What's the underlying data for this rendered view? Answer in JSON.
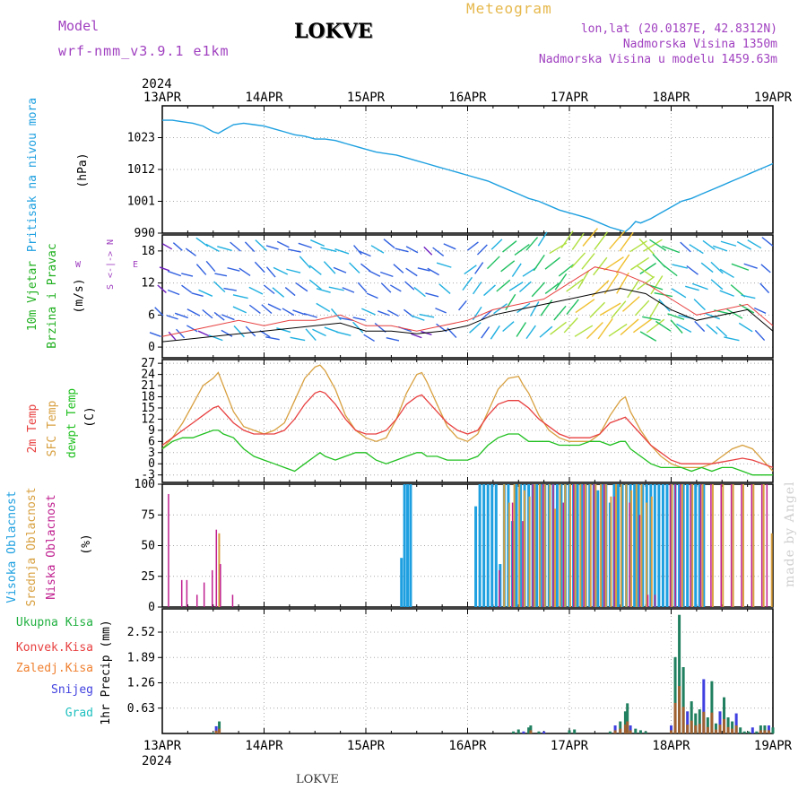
{
  "header": {
    "model_label": "Model",
    "model_version": "wrf-nmm_v3.9.1 e1km",
    "station": "LOKVE",
    "title": "Meteogram",
    "coords": "lon,lat (20.0187E, 42.8312N)",
    "elevation": "Nadmorska Visina 1350m",
    "model_elevation": "Nadmorska Visina u modelu 1459.63m"
  },
  "time_axis": {
    "year": "2024",
    "dates": [
      "13APR",
      "14APR",
      "15APR",
      "16APR",
      "17APR",
      "18APR",
      "19APR"
    ]
  },
  "footer": {
    "station": "LOKVE",
    "credit": "made by Angel"
  },
  "colors": {
    "pressure": "#1ea0e0",
    "temp2m": "#e84040",
    "sfc_temp": "#d8a040",
    "dewpt": "#20c020",
    "high_cloud": "#1ea0e0",
    "mid_cloud": "#d8a040",
    "low_cloud": "#c02090",
    "total_precip": "#20b040",
    "conv_precip": "#e84040",
    "frozen_precip": "#f08030",
    "snow": "#4040e0",
    "grad": "#20c0c0",
    "wind_label": "#20b020",
    "wind_legend": "#a040c0"
  },
  "chart_data": [
    {
      "type": "line",
      "id": "pressure",
      "ylabel": "Pritisak na nivou mora",
      "unit": "(hPa)",
      "yticks": [
        990,
        1001,
        1012,
        1023
      ],
      "ylim": [
        990,
        1034
      ],
      "x": [
        0,
        0.1,
        0.2,
        0.3,
        0.4,
        0.5,
        0.55,
        0.6,
        0.7,
        0.8,
        0.9,
        1,
        1.1,
        1.2,
        1.3,
        1.4,
        1.5,
        1.6,
        1.7,
        1.8,
        1.9,
        2,
        2.1,
        2.2,
        2.3,
        2.4,
        2.5,
        2.6,
        2.7,
        2.8,
        2.9,
        3,
        3.1,
        3.2,
        3.3,
        3.4,
        3.5,
        3.6,
        3.7,
        3.8,
        3.9,
        4,
        4.1,
        4.2,
        4.3,
        4.4,
        4.5,
        4.55,
        4.6,
        4.65,
        4.7,
        4.8,
        4.9,
        5,
        5.1,
        5.2,
        5.3,
        5.4,
        5.5,
        5.6,
        5.7,
        5.8,
        5.9,
        6
      ],
      "values": [
        1029,
        1029,
        1028.5,
        1028,
        1027,
        1025,
        1024.5,
        1025.5,
        1027.5,
        1028,
        1027.5,
        1027,
        1026,
        1025,
        1024,
        1023.5,
        1022.5,
        1022.5,
        1022,
        1021,
        1020,
        1019,
        1018,
        1017.5,
        1017,
        1016,
        1015,
        1014,
        1013,
        1012,
        1011,
        1010,
        1009,
        1008,
        1006.5,
        1005,
        1003.5,
        1002,
        1001,
        999.5,
        998,
        997,
        996,
        995,
        993.5,
        992,
        991,
        990.5,
        992,
        994,
        993.5,
        995,
        997,
        999,
        1001,
        1002,
        1003.5,
        1005,
        1006.5,
        1008,
        1009.5,
        1011,
        1012.5,
        1014
      ]
    },
    {
      "type": "line",
      "id": "wind",
      "ylabel": "10m Vjetar",
      "ylabel2": "Brzina i Pravac",
      "unit": "(m/s)",
      "legend_s": "S",
      "legend_n": "N",
      "legend_w": "W",
      "legend_e": "E",
      "legend_arrows": "<-|->",
      "yticks": [
        0,
        6,
        12,
        18
      ],
      "ylim": [
        -2,
        21
      ],
      "x": [
        0,
        0.25,
        0.5,
        0.75,
        1,
        1.25,
        1.5,
        1.75,
        2,
        2.25,
        2.5,
        2.75,
        3,
        3.25,
        3.5,
        3.75,
        4,
        4.25,
        4.5,
        4.75,
        5,
        5.25,
        5.5,
        5.75,
        6
      ],
      "values": [
        1,
        1.5,
        2,
        2.5,
        3,
        3.5,
        4,
        4.5,
        3,
        3,
        2.5,
        3,
        4,
        6,
        7,
        8,
        9,
        10,
        11,
        10,
        7,
        5,
        6,
        7,
        3
      ],
      "gust_values": [
        2,
        3,
        4,
        5,
        4,
        5,
        5,
        6,
        4,
        4,
        3,
        4,
        5,
        7,
        8,
        9,
        12,
        15,
        14,
        12,
        9,
        6,
        7,
        8,
        4
      ]
    },
    {
      "type": "line",
      "id": "temperature",
      "ylabel_a": "2m Temp",
      "ylabel_b": "SFC Temp",
      "ylabel_c": "dewpt Temp",
      "unit": "(C)",
      "yticks": [
        -3,
        0,
        3,
        6,
        9,
        12,
        15,
        18,
        21,
        24,
        27
      ],
      "ylim": [
        -5,
        28
      ],
      "x": [
        0,
        0.1,
        0.2,
        0.3,
        0.4,
        0.5,
        0.55,
        0.6,
        0.7,
        0.8,
        0.9,
        1,
        1.1,
        1.2,
        1.3,
        1.4,
        1.5,
        1.55,
        1.6,
        1.7,
        1.8,
        1.9,
        2,
        2.1,
        2.2,
        2.3,
        2.4,
        2.5,
        2.55,
        2.6,
        2.7,
        2.8,
        2.9,
        3,
        3.1,
        3.2,
        3.3,
        3.4,
        3.5,
        3.55,
        3.6,
        3.7,
        3.8,
        3.9,
        4,
        4.1,
        4.2,
        4.3,
        4.4,
        4.5,
        4.55,
        4.6,
        4.7,
        4.8,
        4.9,
        5,
        5.1,
        5.2,
        5.3,
        5.4,
        5.5,
        5.6,
        5.7,
        5.8,
        5.9,
        6
      ],
      "series": [
        {
          "name": "2m Temp",
          "values": [
            5,
            7,
            9,
            11,
            13,
            15,
            15.5,
            14,
            11,
            9,
            8,
            8,
            8,
            9,
            12,
            16,
            19,
            19.5,
            19,
            16,
            12,
            9,
            8,
            8,
            9,
            12,
            16,
            18,
            18.5,
            17,
            14,
            11,
            9,
            8,
            9,
            13,
            16,
            17,
            17,
            16,
            15,
            12,
            10,
            8,
            7,
            7,
            7,
            8,
            11,
            12,
            12.5,
            11,
            8,
            5,
            3,
            1,
            0,
            0,
            0,
            0,
            0.5,
            1,
            1.5,
            1,
            0,
            -1
          ]
        },
        {
          "name": "SFC Temp",
          "values": [
            4,
            7,
            11,
            16,
            21,
            23,
            24.5,
            21,
            14,
            10,
            9,
            8,
            9,
            11,
            17,
            23,
            26,
            26.5,
            25,
            20,
            13,
            9,
            7,
            6,
            7,
            12,
            19,
            24,
            24.5,
            22,
            16,
            10,
            7,
            6,
            8,
            14,
            20,
            23,
            23.5,
            21,
            19,
            13,
            9,
            7,
            6,
            6,
            6,
            8,
            13,
            17,
            18,
            14,
            9,
            5,
            2,
            0,
            -1,
            -1,
            -1,
            0,
            2,
            4,
            5,
            4,
            1,
            -2
          ]
        },
        {
          "name": "dewpt Temp",
          "values": [
            4,
            6,
            7,
            7,
            8,
            9,
            9,
            8,
            7,
            4,
            2,
            1,
            0,
            -1,
            -2,
            0,
            2,
            3,
            2,
            1,
            2,
            3,
            3,
            1,
            0,
            1,
            2,
            3,
            3,
            2,
            2,
            1,
            1,
            1,
            2,
            5,
            7,
            8,
            8,
            7,
            6,
            6,
            6,
            5,
            5,
            5,
            6,
            6,
            5,
            6,
            6,
            4,
            2,
            0,
            -1,
            -1,
            -1,
            -2,
            -1,
            -2,
            -1,
            -1,
            -2,
            -3,
            -3,
            -3
          ]
        }
      ]
    },
    {
      "type": "bar",
      "id": "clouds",
      "ylabel_a": "Visoka Oblacnost",
      "ylabel_b": "Srednja Oblacnost",
      "ylabel_c": "Niska Oblacnost",
      "unit": "(%)",
      "yticks": [
        0,
        25,
        50,
        75,
        100
      ],
      "ylim": [
        0,
        100
      ],
      "high_x": [
        2.35,
        2.38,
        2.41,
        2.44,
        3.08,
        3.12,
        3.16,
        3.2,
        3.24,
        3.28,
        3.32,
        3.36,
        3.4,
        3.44,
        3.48,
        3.52,
        3.56,
        3.6,
        3.64,
        3.68,
        3.72,
        3.76,
        3.8,
        3.84,
        3.88,
        3.92,
        3.96,
        4.0,
        4.04,
        4.08,
        4.12,
        4.16,
        4.2,
        4.24,
        4.28,
        4.32,
        4.36,
        4.4,
        4.44,
        4.48,
        4.52,
        4.56,
        4.6,
        4.64,
        4.68,
        4.72,
        4.76,
        4.8,
        4.84,
        4.88,
        4.92,
        4.96,
        5.0,
        5.04,
        5.08,
        5.12,
        5.16,
        5.2,
        5.24,
        5.28,
        5.32
      ],
      "high_values": [
        40,
        100,
        100,
        100,
        82,
        100,
        100,
        100,
        100,
        100,
        35,
        100,
        100,
        70,
        100,
        100,
        100,
        100,
        100,
        100,
        100,
        100,
        100,
        100,
        100,
        100,
        100,
        100,
        100,
        100,
        100,
        100,
        100,
        100,
        95,
        100,
        100,
        85,
        100,
        100,
        100,
        100,
        100,
        100,
        100,
        100,
        100,
        100,
        100,
        100,
        100,
        100,
        100,
        100,
        100,
        100,
        100,
        100,
        100,
        100,
        100
      ],
      "mid_x": [
        0.55,
        3.35,
        3.4,
        3.45,
        3.5,
        3.55,
        3.6,
        3.65,
        3.7,
        3.75,
        3.8,
        3.85,
        3.9,
        3.95,
        4.0,
        4.05,
        4.1,
        4.15,
        4.2,
        4.25,
        4.3,
        4.35,
        4.4,
        4.45,
        4.5,
        4.55,
        4.6,
        4.65,
        4.7,
        4.75,
        4.8,
        5.0,
        5.1,
        5.2,
        5.3,
        5.4,
        5.5,
        5.6,
        5.7,
        5.8,
        5.9,
        5.98
      ],
      "mid_values": [
        60,
        100,
        85,
        100,
        100,
        95,
        90,
        100,
        100,
        100,
        100,
        80,
        100,
        100,
        100,
        100,
        100,
        100,
        100,
        100,
        100,
        100,
        90,
        100,
        100,
        100,
        95,
        100,
        100,
        85,
        90,
        100,
        100,
        100,
        100,
        100,
        100,
        100,
        100,
        100,
        100,
        60
      ],
      "low_x": [
        0.07,
        0.2,
        0.25,
        0.35,
        0.42,
        0.5,
        0.54,
        0.58,
        0.7,
        3.32,
        3.45,
        3.55,
        3.65,
        3.75,
        3.85,
        3.95,
        4.05,
        4.15,
        4.25,
        4.35,
        4.45,
        4.6,
        4.7,
        4.78,
        4.85,
        5.0,
        5.05,
        5.1,
        5.2,
        5.3,
        5.4,
        5.5,
        5.6,
        5.7,
        5.8,
        5.9,
        5.95
      ],
      "low_values": [
        92,
        22,
        22,
        10,
        20,
        30,
        63,
        35,
        10,
        30,
        85,
        70,
        100,
        100,
        100,
        85,
        100,
        100,
        100,
        100,
        90,
        85,
        75,
        10,
        10,
        100,
        100,
        100,
        100,
        100,
        100,
        100,
        100,
        100,
        100,
        100,
        100
      ]
    },
    {
      "type": "bar",
      "id": "precip",
      "label_total": "Ukupna Kisa",
      "label_conv": "Konvek.Kisa",
      "label_frozen": "Zaledj.Kisa",
      "label_snow": "Snijeg",
      "label_grad": "Grad",
      "ylabel": "1hr Precip (mm)",
      "yticks": [
        0.63,
        1.26,
        1.89,
        2.52
      ],
      "ylim": [
        0,
        3.1
      ],
      "x": [
        0.5,
        0.53,
        0.56,
        3.45,
        3.5,
        3.55,
        3.6,
        3.62,
        3.7,
        3.75,
        4.0,
        4.05,
        4.4,
        4.45,
        4.5,
        4.55,
        4.57,
        4.6,
        4.65,
        4.7,
        4.75,
        5.0,
        5.04,
        5.08,
        5.12,
        5.16,
        5.2,
        5.24,
        5.28,
        5.32,
        5.36,
        5.4,
        5.44,
        5.48,
        5.52,
        5.56,
        5.6,
        5.64,
        5.68,
        5.72,
        5.76,
        5.8,
        5.84,
        5.88,
        5.92,
        5.96,
        6.0
      ],
      "values": [
        0.02,
        0.18,
        0.3,
        0.05,
        0.1,
        0.05,
        0.15,
        0.2,
        0.05,
        0.05,
        0.08,
        0.1,
        0.05,
        0.2,
        0.3,
        0.55,
        0.75,
        0.2,
        0.12,
        0.08,
        0.05,
        0.2,
        1.9,
        2.95,
        1.65,
        0.55,
        0.8,
        0.5,
        0.6,
        1.35,
        0.4,
        1.3,
        0.25,
        0.55,
        0.9,
        0.4,
        0.3,
        0.5,
        0.15,
        0.05,
        0.05,
        0.15,
        0.05,
        0.2,
        0.2,
        0.2,
        0.15
      ]
    }
  ]
}
